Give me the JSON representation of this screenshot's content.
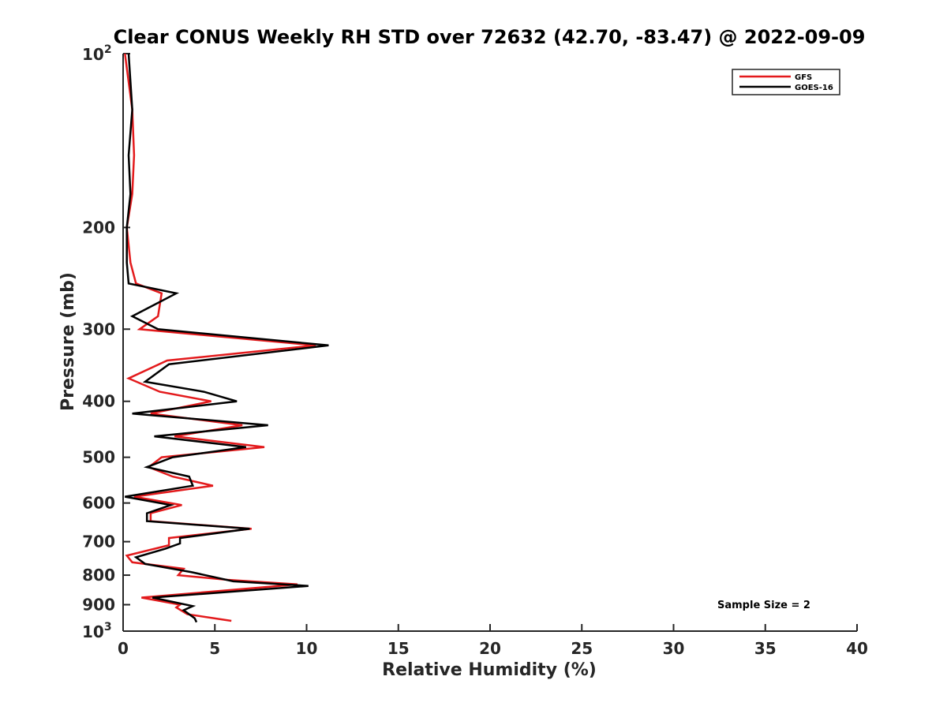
{
  "chart_data": {
    "type": "line",
    "title": "Clear CONUS Weekly RH STD over 72632 (42.70, -83.47) @ 2022-09-09",
    "xlabel": "Relative Humidity (%)",
    "ylabel": "Pressure (mb)",
    "xlim": [
      0,
      40
    ],
    "ylim": [
      100,
      1000
    ],
    "y_scale": "log",
    "y_reversed": true,
    "x_ticks": [
      "0",
      "5",
      "10",
      "15",
      "20",
      "25",
      "30",
      "35",
      "40"
    ],
    "y_ticks": [
      {
        "value": 100,
        "label": "10",
        "sup": "2"
      },
      {
        "value": 200,
        "label": "200",
        "sup": ""
      },
      {
        "value": 300,
        "label": "300",
        "sup": ""
      },
      {
        "value": 400,
        "label": "400",
        "sup": ""
      },
      {
        "value": 500,
        "label": "500",
        "sup": ""
      },
      {
        "value": 600,
        "label": "600",
        "sup": ""
      },
      {
        "value": 700,
        "label": "700",
        "sup": ""
      },
      {
        "value": 800,
        "label": "800",
        "sup": ""
      },
      {
        "value": 900,
        "label": "900",
        "sup": ""
      },
      {
        "value": 1000,
        "label": "10",
        "sup": "3"
      }
    ],
    "grid": false,
    "legend_position": "top-right",
    "annotation": "Sample Size = 2",
    "series": [
      {
        "name": "GFS",
        "color": "#e31a1c",
        "points": [
          [
            0.1,
            100
          ],
          [
            0.5,
            125
          ],
          [
            0.6,
            150
          ],
          [
            0.5,
            175
          ],
          [
            0.2,
            200
          ],
          [
            0.4,
            230
          ],
          [
            0.7,
            250
          ],
          [
            2.1,
            260
          ],
          [
            1.9,
            285
          ],
          [
            0.9,
            300
          ],
          [
            10.5,
            320
          ],
          [
            2.4,
            340
          ],
          [
            0.3,
            365
          ],
          [
            2.0,
            385
          ],
          [
            4.8,
            400
          ],
          [
            1.5,
            420
          ],
          [
            6.5,
            440
          ],
          [
            2.8,
            460
          ],
          [
            7.7,
            480
          ],
          [
            2.1,
            500
          ],
          [
            1.4,
            520
          ],
          [
            2.7,
            540
          ],
          [
            4.9,
            560
          ],
          [
            0.6,
            585
          ],
          [
            3.2,
            605
          ],
          [
            1.5,
            625
          ],
          [
            1.5,
            645
          ],
          [
            7.0,
            665
          ],
          [
            2.5,
            690
          ],
          [
            2.5,
            710
          ],
          [
            0.2,
            740
          ],
          [
            0.5,
            760
          ],
          [
            3.3,
            780
          ],
          [
            3.0,
            800
          ],
          [
            5.7,
            815
          ],
          [
            9.5,
            830
          ],
          [
            1.0,
            875
          ],
          [
            3.1,
            900
          ],
          [
            2.9,
            910
          ],
          [
            3.5,
            935
          ],
          [
            5.9,
            960
          ]
        ]
      },
      {
        "name": "GOES-16",
        "color": "#000000",
        "points": [
          [
            0.3,
            100
          ],
          [
            0.5,
            125
          ],
          [
            0.3,
            150
          ],
          [
            0.4,
            175
          ],
          [
            0.2,
            200
          ],
          [
            0.2,
            230
          ],
          [
            0.3,
            250
          ],
          [
            2.9,
            260
          ],
          [
            0.5,
            285
          ],
          [
            1.9,
            300
          ],
          [
            11.2,
            320
          ],
          [
            2.5,
            345
          ],
          [
            1.2,
            370
          ],
          [
            4.4,
            385
          ],
          [
            6.2,
            400
          ],
          [
            0.5,
            420
          ],
          [
            7.9,
            440
          ],
          [
            1.7,
            460
          ],
          [
            6.7,
            480
          ],
          [
            2.7,
            500
          ],
          [
            1.3,
            520
          ],
          [
            3.6,
            540
          ],
          [
            3.8,
            560
          ],
          [
            0.1,
            585
          ],
          [
            2.6,
            605
          ],
          [
            1.3,
            625
          ],
          [
            1.3,
            645
          ],
          [
            6.9,
            665
          ],
          [
            3.1,
            690
          ],
          [
            3.1,
            705
          ],
          [
            2.3,
            720
          ],
          [
            0.7,
            745
          ],
          [
            1.2,
            765
          ],
          [
            3.7,
            790
          ],
          [
            6.0,
            820
          ],
          [
            10.1,
            835
          ],
          [
            1.6,
            875
          ],
          [
            3.8,
            905
          ],
          [
            3.3,
            920
          ],
          [
            3.9,
            950
          ],
          [
            4.0,
            965
          ]
        ]
      }
    ]
  }
}
